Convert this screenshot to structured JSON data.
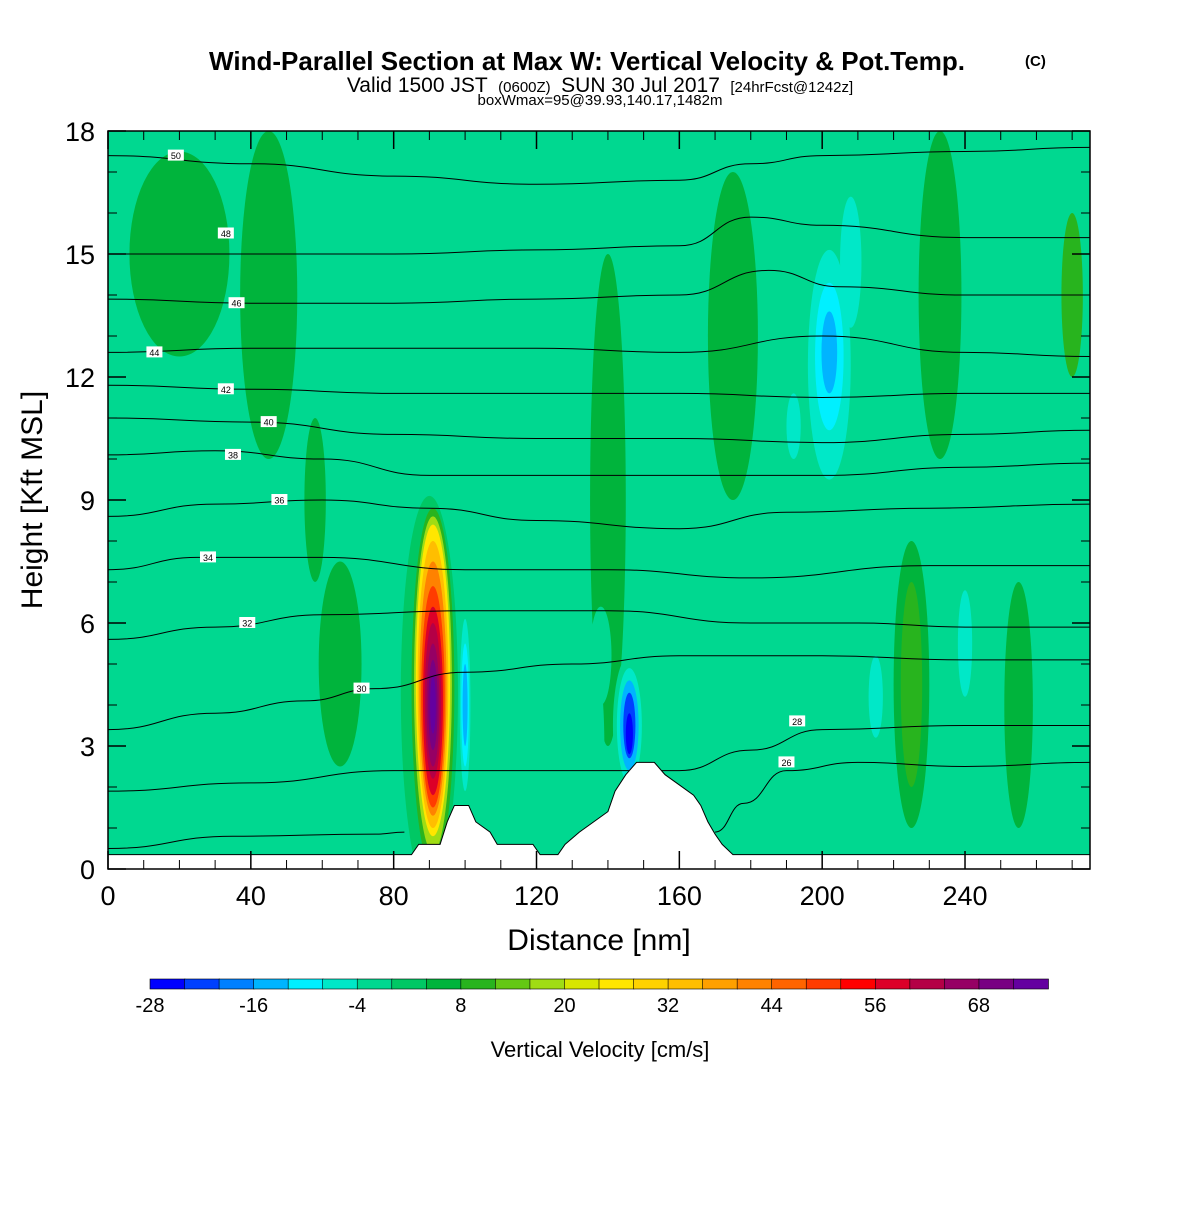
{
  "chart_data": {
    "type": "heatmap",
    "title": "Wind-Parallel Section at Max W: Vertical Velocity & Pot.Temp.",
    "title_mark": "(C)",
    "subtitle": {
      "prefix": "Valid 1500 JST",
      "utc": "(0600Z)",
      "date": "SUN 30 Jul 2017",
      "forecast": "[24hrFcst@1242z]"
    },
    "subtitle2": "boxWmax=95@39.93,140.17,1482m",
    "xlabel": "Distance [nm]",
    "ylabel": "Height [Kft MSL]",
    "xlim": [
      0,
      275
    ],
    "ylim": [
      0,
      18
    ],
    "x_ticks": [
      "0",
      "40",
      "80",
      "120",
      "160",
      "200",
      "240"
    ],
    "y_ticks": [
      "0",
      "3",
      "6",
      "9",
      "12",
      "15",
      "18"
    ],
    "background_color": "#00d890",
    "colorbar": {
      "title": "Vertical Velocity [cm/s]",
      "range": [
        -28,
        76
      ],
      "step": 4,
      "tick_labels": [
        "-28",
        "-16",
        "-4",
        "8",
        "20",
        "32",
        "44",
        "56",
        "68"
      ],
      "colors": [
        "#0000ff",
        "#0040ff",
        "#0080ff",
        "#00b4ff",
        "#00f0ff",
        "#00e8c8",
        "#00d890",
        "#00c864",
        "#00b43c",
        "#28b41e",
        "#64c814",
        "#a0dc14",
        "#d8e600",
        "#ffe600",
        "#ffd200",
        "#ffbe00",
        "#ffa000",
        "#ff8200",
        "#ff6400",
        "#ff3c00",
        "#ff0000",
        "#dc0028",
        "#b40046",
        "#960064",
        "#780082",
        "#6400a0"
      ]
    },
    "features": [
      {
        "name": "updraft-core",
        "x": 91,
        "y": 4.3,
        "value": 76
      },
      {
        "name": "downdraft-east",
        "x": 146,
        "y": 3.5,
        "value": -28
      },
      {
        "name": "downdraft-upper",
        "x": 202,
        "y": 12.5,
        "value": -16
      }
    ],
    "terrain": [
      [
        0,
        0.35
      ],
      [
        85,
        0.35
      ],
      [
        87,
        0.6
      ],
      [
        93,
        0.6
      ],
      [
        95,
        1.15
      ],
      [
        97,
        1.55
      ],
      [
        101,
        1.55
      ],
      [
        103,
        1.15
      ],
      [
        107,
        0.9
      ],
      [
        109,
        0.6
      ],
      [
        119,
        0.6
      ],
      [
        121,
        0.35
      ],
      [
        126,
        0.35
      ],
      [
        128,
        0.6
      ],
      [
        132,
        0.9
      ],
      [
        136,
        1.15
      ],
      [
        140,
        1.4
      ],
      [
        142,
        1.9
      ],
      [
        145,
        2.3
      ],
      [
        148,
        2.6
      ],
      [
        153,
        2.6
      ],
      [
        156,
        2.3
      ],
      [
        160,
        2.05
      ],
      [
        164,
        1.8
      ],
      [
        166,
        1.55
      ],
      [
        168,
        1.15
      ],
      [
        170,
        0.85
      ],
      [
        172,
        0.6
      ],
      [
        175,
        0.35
      ],
      [
        275,
        0.35
      ]
    ],
    "theta_contours": [
      {
        "value": 26,
        "label": "26",
        "pts": [
          [
            0,
            0.5
          ],
          [
            35,
            0.8
          ],
          [
            75,
            0.85
          ],
          [
            83,
            0.9
          ]
        ],
        "label_at": null
      },
      {
        "value": 26,
        "label": "26",
        "pts": [
          [
            170,
            0.9
          ],
          [
            178,
            1.6
          ],
          [
            190,
            2.4
          ],
          [
            210,
            2.6
          ],
          [
            240,
            2.5
          ],
          [
            275,
            2.6
          ]
        ],
        "label_at": [
          190,
          2.6
        ]
      },
      {
        "value": 28,
        "label": "28",
        "pts": [
          [
            0,
            1.9
          ],
          [
            40,
            2.1
          ],
          [
            80,
            2.4
          ],
          [
            160,
            2.4
          ],
          [
            180,
            2.9
          ],
          [
            200,
            3.4
          ],
          [
            240,
            3.5
          ],
          [
            275,
            3.5
          ]
        ],
        "label_at": [
          193,
          3.6
        ]
      },
      {
        "value": 30,
        "label": "30",
        "pts": [
          [
            0,
            3.4
          ],
          [
            30,
            3.8
          ],
          [
            55,
            4.1
          ],
          [
            75,
            4.4
          ],
          [
            100,
            4.8
          ],
          [
            130,
            5.0
          ],
          [
            160,
            5.2
          ],
          [
            200,
            5.2
          ],
          [
            240,
            5.1
          ],
          [
            275,
            5.1
          ]
        ],
        "label_at": [
          71,
          4.4
        ]
      },
      {
        "value": 32,
        "label": "32",
        "pts": [
          [
            0,
            5.6
          ],
          [
            30,
            5.9
          ],
          [
            60,
            6.2
          ],
          [
            100,
            6.3
          ],
          [
            140,
            6.3
          ],
          [
            180,
            6.0
          ],
          [
            210,
            6.0
          ],
          [
            240,
            5.9
          ],
          [
            275,
            5.9
          ]
        ],
        "label_at": [
          39,
          6.0
        ]
      },
      {
        "value": 34,
        "label": "34",
        "pts": [
          [
            0,
            7.3
          ],
          [
            25,
            7.6
          ],
          [
            60,
            7.6
          ],
          [
            100,
            7.3
          ],
          [
            140,
            7.3
          ],
          [
            180,
            7.1
          ],
          [
            230,
            7.4
          ],
          [
            275,
            7.4
          ]
        ],
        "label_at": [
          28,
          7.6
        ]
      },
      {
        "value": 36,
        "label": "36",
        "pts": [
          [
            0,
            8.6
          ],
          [
            30,
            8.9
          ],
          [
            60,
            9.0
          ],
          [
            90,
            8.8
          ],
          [
            120,
            8.5
          ],
          [
            160,
            8.3
          ],
          [
            190,
            8.7
          ],
          [
            230,
            8.8
          ],
          [
            275,
            8.9
          ]
        ],
        "label_at": [
          48,
          9.0
        ]
      },
      {
        "value": 38,
        "label": "38",
        "pts": [
          [
            0,
            10.1
          ],
          [
            30,
            10.2
          ],
          [
            60,
            10.0
          ],
          [
            90,
            9.6
          ],
          [
            120,
            9.6
          ],
          [
            160,
            9.6
          ],
          [
            200,
            9.6
          ],
          [
            240,
            9.8
          ],
          [
            275,
            9.9
          ]
        ],
        "label_at": [
          35,
          10.1
        ]
      },
      {
        "value": 40,
        "label": "40",
        "pts": [
          [
            0,
            11.0
          ],
          [
            40,
            10.9
          ],
          [
            80,
            10.6
          ],
          [
            120,
            10.5
          ],
          [
            160,
            10.5
          ],
          [
            200,
            10.4
          ],
          [
            240,
            10.6
          ],
          [
            275,
            10.7
          ]
        ],
        "label_at": [
          45,
          10.9
        ]
      },
      {
        "value": 42,
        "label": "42",
        "pts": [
          [
            0,
            11.8
          ],
          [
            40,
            11.7
          ],
          [
            80,
            11.6
          ],
          [
            120,
            11.6
          ],
          [
            160,
            11.6
          ],
          [
            200,
            11.5
          ],
          [
            240,
            11.6
          ],
          [
            275,
            11.6
          ]
        ],
        "label_at": [
          33,
          11.7
        ]
      },
      {
        "value": 44,
        "label": "44",
        "pts": [
          [
            0,
            12.6
          ],
          [
            40,
            12.7
          ],
          [
            80,
            12.7
          ],
          [
            120,
            12.7
          ],
          [
            160,
            12.6
          ],
          [
            200,
            13.0
          ],
          [
            240,
            12.6
          ],
          [
            275,
            12.5
          ]
        ],
        "label_at": [
          13,
          12.6
        ]
      },
      {
        "value": 46,
        "label": "46",
        "pts": [
          [
            0,
            13.9
          ],
          [
            40,
            13.8
          ],
          [
            80,
            13.8
          ],
          [
            120,
            13.9
          ],
          [
            160,
            14.0
          ],
          [
            185,
            14.6
          ],
          [
            205,
            14.2
          ],
          [
            240,
            14.0
          ],
          [
            275,
            14.0
          ]
        ],
        "label_at": [
          36,
          13.8
        ]
      },
      {
        "value": 48,
        "label": "48",
        "pts": [
          [
            0,
            15.0
          ],
          [
            40,
            15.0
          ],
          [
            80,
            15.0
          ],
          [
            120,
            15.1
          ],
          [
            160,
            15.2
          ],
          [
            180,
            15.9
          ],
          [
            200,
            15.7
          ],
          [
            240,
            15.4
          ],
          [
            275,
            15.4
          ]
        ],
        "label_at": [
          33,
          15.5
        ]
      },
      {
        "value": 50,
        "label": "50",
        "pts": [
          [
            0,
            17.4
          ],
          [
            40,
            17.2
          ],
          [
            80,
            16.9
          ],
          [
            120,
            16.7
          ],
          [
            160,
            16.8
          ],
          [
            180,
            17.2
          ],
          [
            200,
            17.4
          ],
          [
            240,
            17.5
          ],
          [
            275,
            17.6
          ]
        ],
        "label_at": [
          19,
          17.4
        ]
      }
    ]
  }
}
